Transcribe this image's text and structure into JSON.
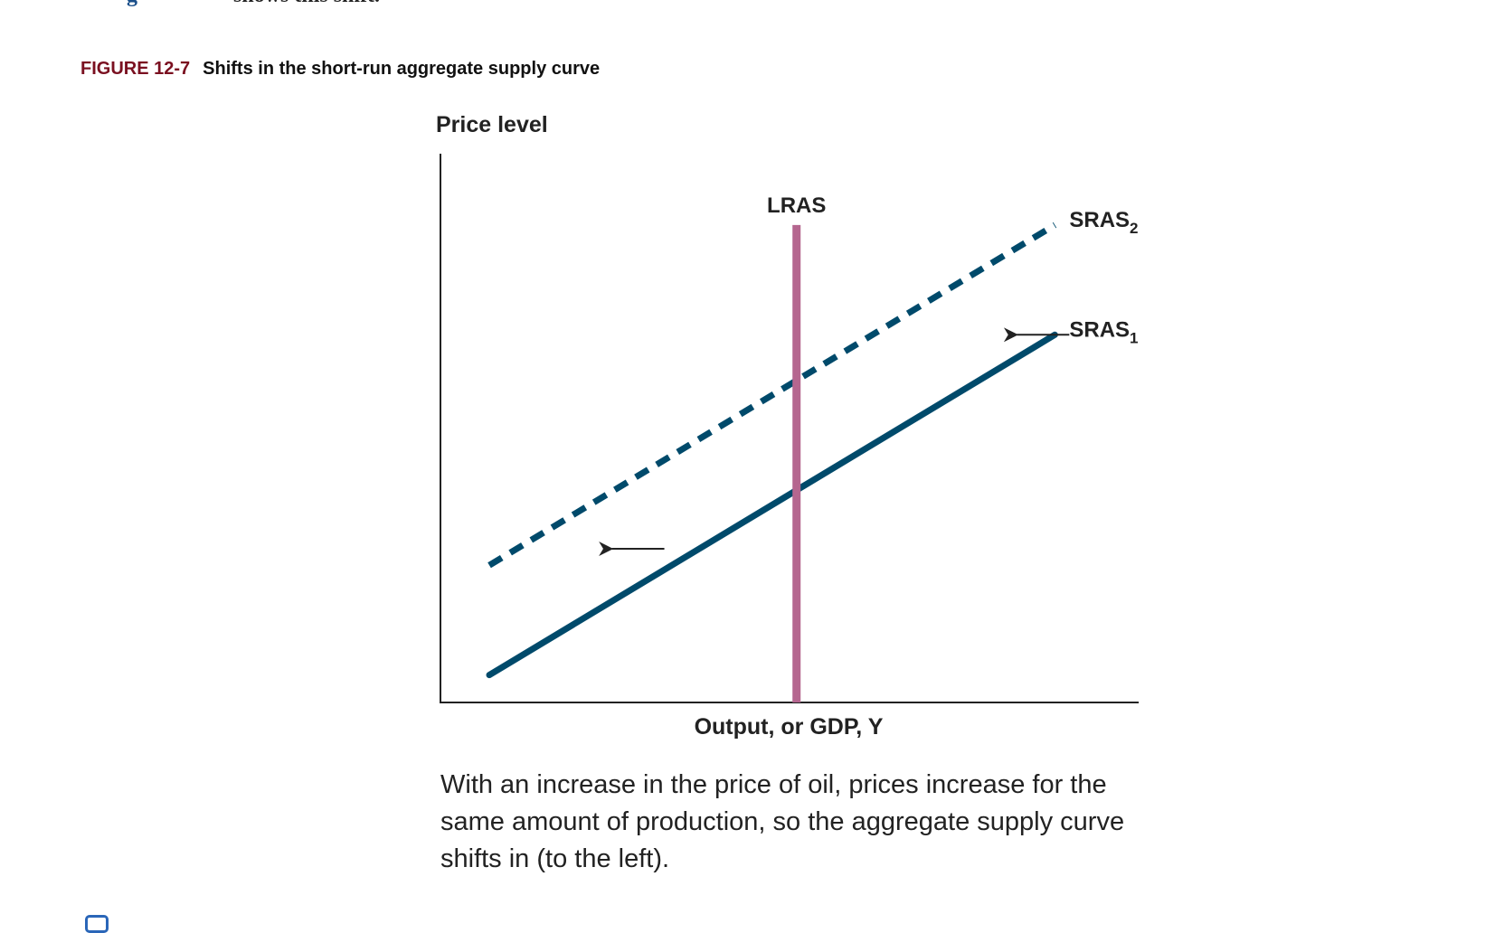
{
  "context_fragments": {
    "left": "g",
    "right": "shows this shift."
  },
  "figure": {
    "number": "FIGURE 12-7",
    "title": "Shifts in the short-run aggregate supply curve",
    "caption": "With an increase in the price of oil, prices increase for the same amount of production, so the aggregate supply curve shifts in (to the left)."
  },
  "icon": "note-icon",
  "chart_data": {
    "type": "line",
    "title": "Shifts in the short-run aggregate supply curve",
    "xlabel": "Output, or GDP, Y",
    "ylabel": "Price level",
    "xlim": [
      0,
      10
    ],
    "ylim": [
      0,
      10
    ],
    "grid": false,
    "series": [
      {
        "name": "SRAS",
        "sub": "1",
        "style": "solid",
        "color": "#004a6b",
        "x": [
          0.7,
          8.8
        ],
        "y": [
          0.5,
          6.7
        ]
      },
      {
        "name": "SRAS",
        "sub": "2",
        "style": "dashed",
        "color": "#004a6b",
        "x": [
          0.7,
          8.8
        ],
        "y": [
          2.5,
          8.7
        ]
      },
      {
        "name": "LRAS",
        "style": "solid",
        "color": "#b5668f",
        "x": [
          5.1,
          5.1
        ],
        "y": [
          0,
          8.7
        ]
      }
    ],
    "annotations": [
      {
        "type": "arrow",
        "direction": "left",
        "at": [
          8.1,
          6.7
        ]
      },
      {
        "type": "arrow",
        "direction": "left",
        "at": [
          2.3,
          2.8
        ]
      }
    ]
  }
}
